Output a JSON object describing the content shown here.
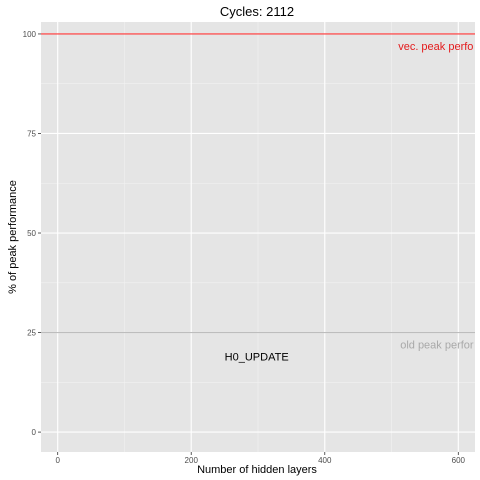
{
  "chart_data": {
    "type": "line",
    "title": "Cycles:  2112",
    "xlabel": "Number of hidden layers",
    "ylabel": "% of peak performance",
    "xlim": [
      -25,
      625
    ],
    "ylim": [
      -5,
      103
    ],
    "x_ticks": [
      0,
      200,
      400,
      600
    ],
    "x_minor_ticks": [
      100,
      300,
      500
    ],
    "y_ticks": [
      0,
      25,
      50,
      75,
      100
    ],
    "y_minor_ticks": [
      12.5,
      37.5,
      62.5,
      87.5
    ],
    "x_tick_labels": [
      "0",
      "200",
      "400",
      "600"
    ],
    "y_tick_labels": [
      "0",
      "25",
      "50",
      "75",
      "100"
    ],
    "grid": true,
    "hlines": [
      {
        "y": 100,
        "color": "#ff3333",
        "label": "vec. peak perfo",
        "label_x": 510,
        "label_y": 97,
        "label_color": "#e41a1c"
      },
      {
        "y": 25,
        "color": "#bdbdbd",
        "label": "old peak perfor",
        "label_x": 513,
        "label_y": 22,
        "label_color": "#a9a9a9"
      }
    ],
    "annotations": [
      {
        "text": "H0_UPDATE",
        "x": 298,
        "y": 19,
        "color": "#000000"
      }
    ],
    "panel_background": "#e5e5e5"
  }
}
